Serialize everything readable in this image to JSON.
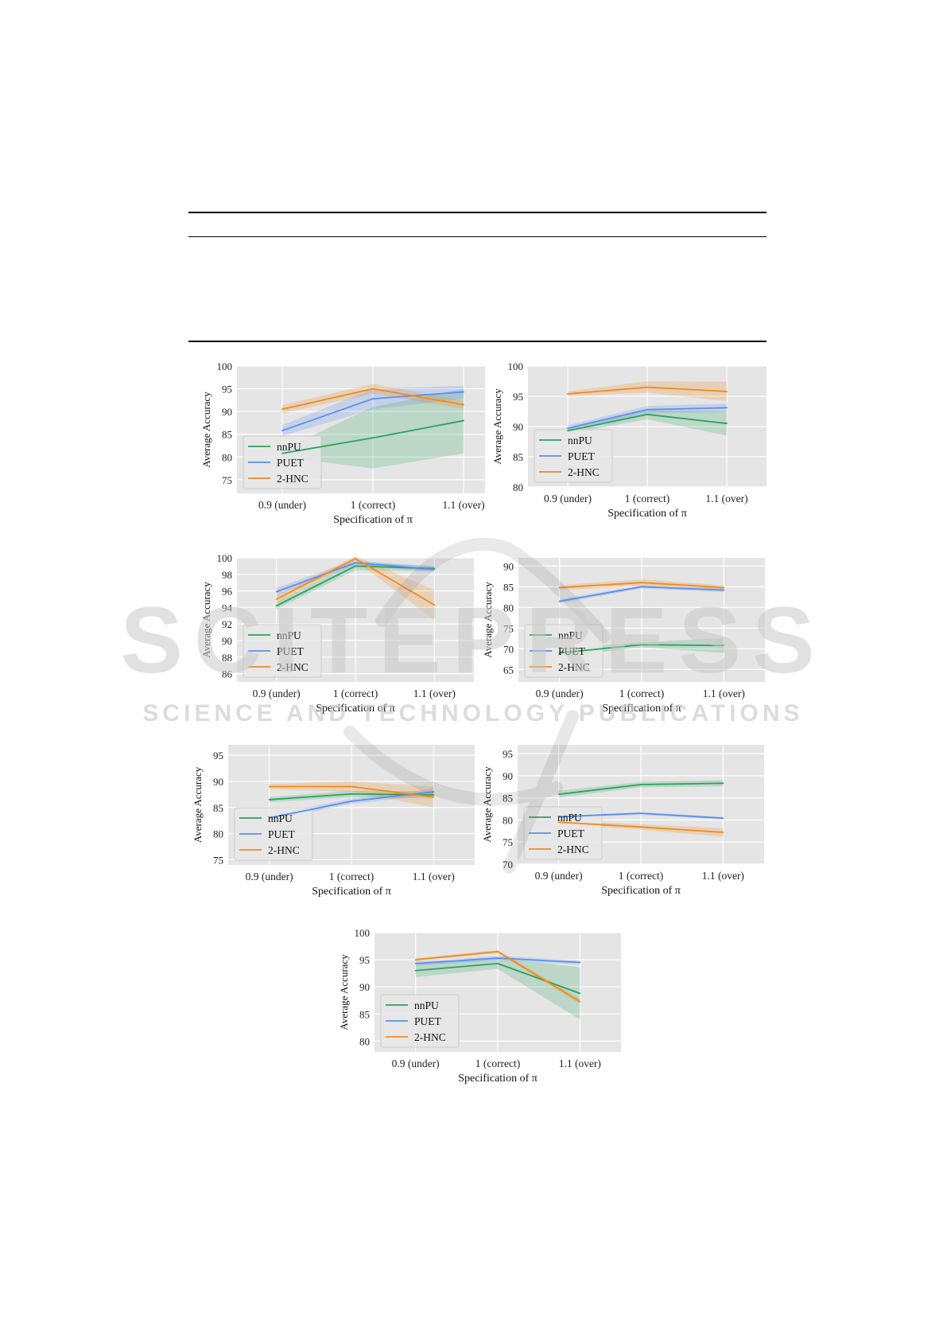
{
  "watermark": {
    "line1": "SCITEPRESS",
    "line2": "SCIENCE AND TECHNOLOGY PUBLICATIONS"
  },
  "colors": {
    "nnPU": "#2ca25f",
    "PUET": "#5b8ff0",
    "2-HNC": "#f28a1b",
    "panel_bg": "#e5e5e5"
  },
  "chart_data": [
    {
      "type": "line",
      "categories": [
        "0.9 (under)",
        "1 (correct)",
        "1.1 (over)"
      ],
      "xlabel": "Specification of π",
      "ylabel": "Average Accuracy",
      "ylim": [
        72,
        100
      ],
      "yticks": [
        75,
        80,
        85,
        90,
        95,
        100
      ],
      "grid": true,
      "legend": "lower-left",
      "series": [
        {
          "name": "nnPU",
          "values": [
            80.8,
            84.2,
            88.0
          ],
          "lower": [
            80.0,
            77.5,
            80.8
          ],
          "upper": [
            81.6,
            91.0,
            95.0
          ]
        },
        {
          "name": "PUET",
          "values": [
            85.8,
            92.8,
            94.3
          ],
          "lower": [
            84.6,
            90.5,
            92.8
          ],
          "upper": [
            87.0,
            95.0,
            95.7
          ]
        },
        {
          "name": "2-HNC",
          "values": [
            90.5,
            95.0,
            91.5
          ],
          "lower": [
            89.6,
            93.9,
            90.6
          ],
          "upper": [
            91.4,
            96.1,
            92.4
          ]
        }
      ]
    },
    {
      "type": "line",
      "categories": [
        "0.9 (under)",
        "1 (correct)",
        "1.1 (over)"
      ],
      "xlabel": "Specification of π",
      "ylabel": "Average Accuracy",
      "ylim": [
        80,
        100
      ],
      "yticks": [
        80,
        85,
        90,
        95,
        100
      ],
      "grid": true,
      "legend": "lower-left",
      "series": [
        {
          "name": "nnPU",
          "values": [
            89.3,
            92.0,
            90.5
          ],
          "lower": [
            88.8,
            91.2,
            88.5
          ],
          "upper": [
            89.8,
            92.8,
            92.5
          ]
        },
        {
          "name": "PUET",
          "values": [
            89.7,
            92.8,
            93.1
          ],
          "lower": [
            89.2,
            92.2,
            92.4
          ],
          "upper": [
            90.2,
            93.4,
            93.8
          ]
        },
        {
          "name": "2-HNC",
          "values": [
            95.4,
            96.5,
            95.8
          ],
          "lower": [
            95.0,
            95.6,
            94.2
          ],
          "upper": [
            95.8,
            97.5,
            97.4
          ]
        }
      ]
    },
    {
      "type": "line",
      "categories": [
        "0.9 (under)",
        "1 (correct)",
        "1.1 (over)"
      ],
      "xlabel": "Specification of π",
      "ylabel": "Average Accuracy",
      "ylim": [
        85,
        100
      ],
      "yticks": [
        86,
        88,
        90,
        92,
        94,
        96,
        98,
        100
      ],
      "grid": true,
      "legend": "lower-left",
      "series": [
        {
          "name": "nnPU",
          "values": [
            94.2,
            99.0,
            98.7
          ],
          "lower": [
            93.8,
            98.5,
            98.4
          ],
          "upper": [
            94.6,
            99.5,
            99.0
          ]
        },
        {
          "name": "PUET",
          "values": [
            95.9,
            99.4,
            98.6
          ],
          "lower": [
            95.4,
            99.1,
            98.3
          ],
          "upper": [
            96.4,
            99.7,
            98.9
          ]
        },
        {
          "name": "2-HNC",
          "values": [
            95.0,
            99.9,
            94.3
          ],
          "lower": [
            94.5,
            99.6,
            92.5
          ],
          "upper": [
            95.5,
            100.2,
            96.1
          ]
        }
      ]
    },
    {
      "type": "line",
      "categories": [
        "0.9 (under)",
        "1 (correct)",
        "1.1 (over)"
      ],
      "xlabel": "Specification of π",
      "ylabel": "Average Accuracy",
      "ylim": [
        62,
        92
      ],
      "yticks": [
        65,
        70,
        75,
        80,
        85,
        90
      ],
      "grid": true,
      "legend": "lower-left",
      "series": [
        {
          "name": "nnPU",
          "values": [
            69.0,
            71.0,
            70.8
          ],
          "lower": [
            68.0,
            70.4,
            69.0
          ],
          "upper": [
            70.0,
            71.6,
            72.6
          ]
        },
        {
          "name": "PUET",
          "values": [
            81.5,
            85.0,
            84.2
          ],
          "lower": [
            81.0,
            84.6,
            83.7
          ],
          "upper": [
            82.0,
            85.4,
            84.7
          ]
        },
        {
          "name": "2-HNC",
          "values": [
            84.8,
            86.0,
            84.8
          ],
          "lower": [
            84.2,
            85.2,
            84.3
          ],
          "upper": [
            85.4,
            86.8,
            85.3
          ]
        }
      ]
    },
    {
      "type": "line",
      "categories": [
        "0.9 (under)",
        "1 (correct)",
        "1.1 (over)"
      ],
      "xlabel": "Specification of π",
      "ylabel": "Average Accuracy",
      "ylim": [
        74,
        97
      ],
      "yticks": [
        75,
        80,
        85,
        90,
        95
      ],
      "grid": true,
      "legend": "lower-left",
      "series": [
        {
          "name": "nnPU",
          "values": [
            86.5,
            87.6,
            87.4
          ],
          "lower": [
            86.0,
            87.0,
            86.7
          ],
          "upper": [
            87.0,
            88.2,
            88.1
          ]
        },
        {
          "name": "PUET",
          "values": [
            83.0,
            86.2,
            88.0
          ],
          "lower": [
            82.5,
            85.7,
            87.4
          ],
          "upper": [
            83.5,
            86.7,
            88.6
          ]
        },
        {
          "name": "2-HNC",
          "values": [
            89.0,
            89.0,
            87.0
          ],
          "lower": [
            88.5,
            88.0,
            85.0
          ],
          "upper": [
            89.5,
            90.0,
            89.0
          ]
        }
      ]
    },
    {
      "type": "line",
      "categories": [
        "0.9 (under)",
        "1 (correct)",
        "1.1 (over)"
      ],
      "xlabel": "Specification of π",
      "ylabel": "Average Accuracy",
      "ylim": [
        70,
        97
      ],
      "yticks": [
        70,
        75,
        80,
        85,
        90,
        95
      ],
      "grid": true,
      "legend": "lower-left",
      "series": [
        {
          "name": "nnPU",
          "values": [
            85.8,
            88.0,
            88.3
          ],
          "lower": [
            85.0,
            87.4,
            87.6
          ],
          "upper": [
            86.6,
            88.6,
            89.0
          ]
        },
        {
          "name": "PUET",
          "values": [
            80.7,
            81.5,
            80.4
          ],
          "lower": [
            80.4,
            81.2,
            80.1
          ],
          "upper": [
            81.0,
            81.8,
            80.7
          ]
        },
        {
          "name": "2-HNC",
          "values": [
            79.5,
            78.4,
            77.2
          ],
          "lower": [
            79.0,
            77.8,
            76.2
          ],
          "upper": [
            80.0,
            79.0,
            78.2
          ]
        }
      ]
    },
    {
      "type": "line",
      "categories": [
        "0.9 (under)",
        "1 (correct)",
        "1.1 (over)"
      ],
      "xlabel": "Specification of π",
      "ylabel": "Average Accuracy",
      "ylim": [
        78,
        100
      ],
      "yticks": [
        80,
        85,
        90,
        95,
        100
      ],
      "grid": true,
      "legend": "lower-left",
      "series": [
        {
          "name": "nnPU",
          "values": [
            93.0,
            94.3,
            88.8
          ],
          "lower": [
            91.8,
            93.3,
            84.0
          ],
          "upper": [
            94.2,
            95.3,
            93.6
          ]
        },
        {
          "name": "PUET",
          "values": [
            94.3,
            95.3,
            94.5
          ],
          "lower": [
            93.9,
            94.9,
            94.1
          ],
          "upper": [
            94.7,
            95.7,
            94.9
          ]
        },
        {
          "name": "2-HNC",
          "values": [
            95.0,
            96.5,
            87.3
          ],
          "lower": [
            94.7,
            96.2,
            86.8
          ],
          "upper": [
            95.3,
            96.8,
            87.8
          ]
        }
      ]
    }
  ]
}
